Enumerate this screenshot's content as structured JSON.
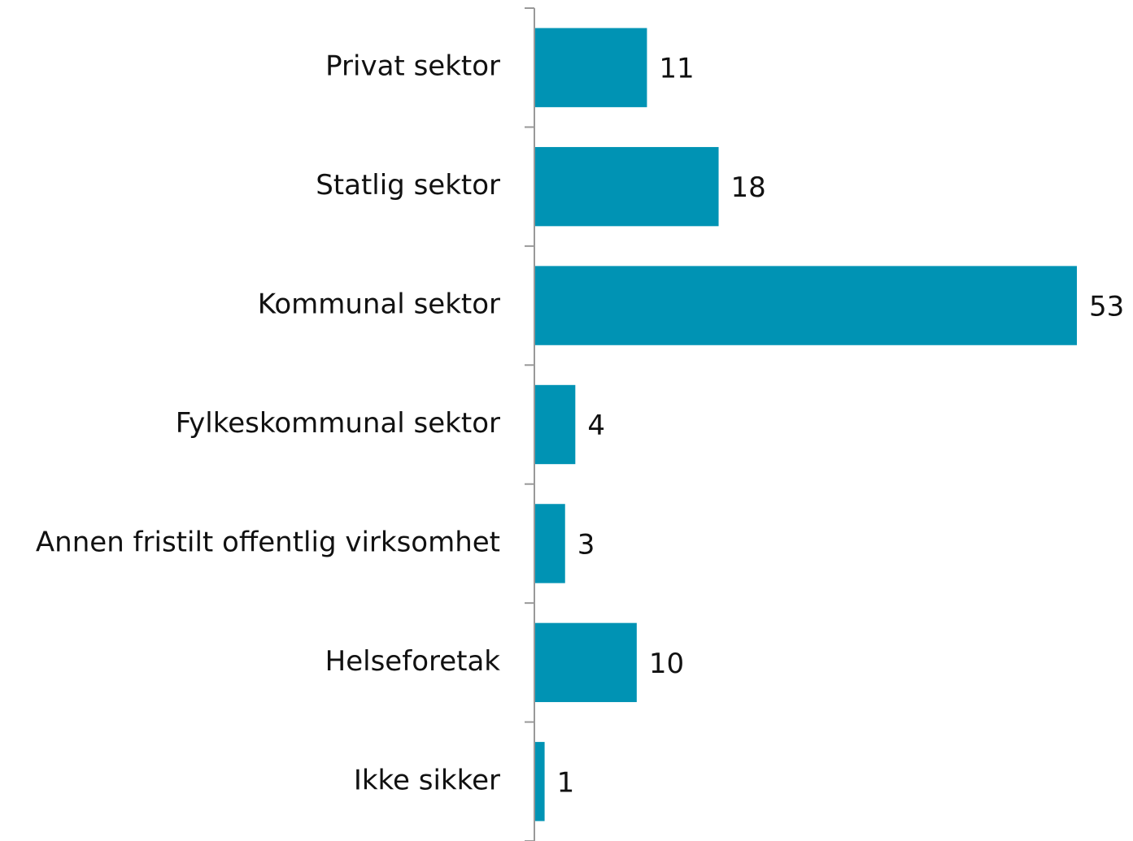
{
  "chart_data": {
    "type": "barh",
    "categories": [
      "Privat sektor",
      "Statlig sektor",
      "Kommunal sektor",
      "Fylkeskommunal sektor",
      "Annen fristilt offentlig virksomhet",
      "Helseforetak",
      "Ikke sikker"
    ],
    "values": [
      11,
      18,
      53,
      4,
      3,
      10,
      1
    ],
    "color": "#0093b4"
  }
}
